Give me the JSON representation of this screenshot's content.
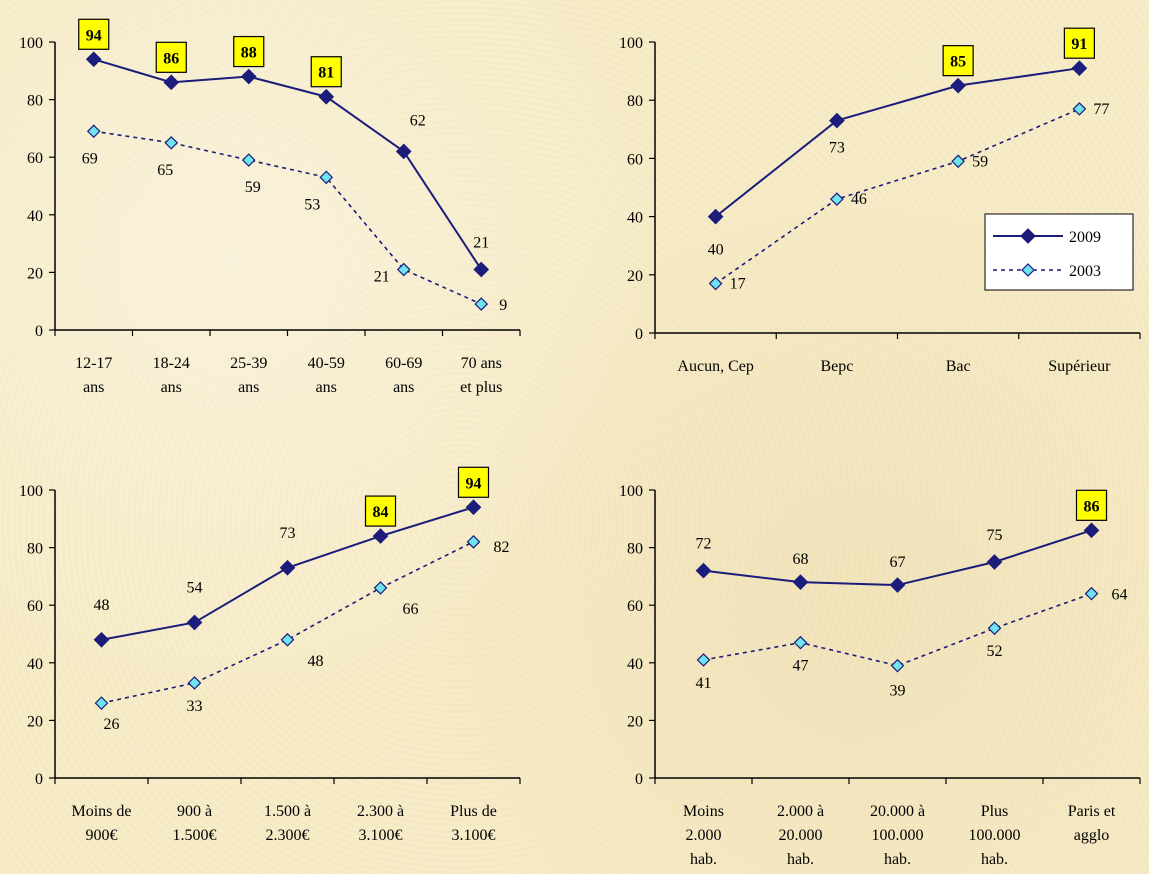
{
  "colors": {
    "series_2009": "#1c1c7a",
    "series_2003_line": "#1c1c7a",
    "series_2003_marker": "#6fe3f0",
    "highlight_fill": "#ffff00",
    "axis": "#000000"
  },
  "legend": {
    "entries": [
      "2009",
      "2003"
    ]
  },
  "chart_data": [
    {
      "type": "line",
      "categories": [
        [
          "12-17",
          "ans"
        ],
        [
          "18-24",
          "ans"
        ],
        [
          "25-39",
          "ans"
        ],
        [
          "40-59",
          "ans"
        ],
        [
          "60-69",
          "ans"
        ],
        [
          "70 ans",
          "et plus"
        ]
      ],
      "series": [
        {
          "name": "2009",
          "values": [
            94,
            86,
            88,
            81,
            62,
            21
          ],
          "labels": [
            "94",
            "86",
            "88",
            "81",
            "62",
            "21"
          ],
          "highlighted": [
            true,
            true,
            true,
            true,
            false,
            false
          ]
        },
        {
          "name": "2003",
          "values": [
            69,
            65,
            59,
            53,
            21,
            9
          ],
          "labels": [
            "69",
            "65",
            "59",
            "53",
            "21",
            "9"
          ],
          "highlighted": [
            false,
            false,
            false,
            false,
            false,
            false
          ]
        }
      ],
      "yticks": [
        "0",
        "20",
        "40",
        "60",
        "80",
        "100"
      ],
      "ylim": [
        0,
        100
      ],
      "legend": false
    },
    {
      "type": "line",
      "categories": [
        [
          "Aucun, Cep"
        ],
        [
          "Bepc"
        ],
        [
          "Bac"
        ],
        [
          "Supérieur"
        ]
      ],
      "series": [
        {
          "name": "2009",
          "values": [
            40,
            73,
            85,
            91
          ],
          "labels": [
            "40",
            "73",
            "85",
            "91"
          ],
          "highlighted": [
            false,
            false,
            true,
            true
          ]
        },
        {
          "name": "2003",
          "values": [
            17,
            46,
            59,
            77
          ],
          "labels": [
            "17",
            "46",
            "59",
            "77"
          ],
          "highlighted": [
            false,
            false,
            false,
            false
          ]
        }
      ],
      "yticks": [
        "0",
        "20",
        "40",
        "60",
        "80",
        "100"
      ],
      "ylim": [
        0,
        100
      ],
      "legend": "right"
    },
    {
      "type": "line",
      "categories": [
        [
          "Moins de",
          "900€"
        ],
        [
          "900 à",
          "1.500€"
        ],
        [
          "1.500 à",
          "2.300€"
        ],
        [
          "2.300 à",
          "3.100€"
        ],
        [
          "Plus de",
          "3.100€"
        ]
      ],
      "series": [
        {
          "name": "2009",
          "values": [
            48,
            54,
            73,
            84,
            94
          ],
          "labels": [
            "48",
            "54",
            "73",
            "84",
            "94"
          ],
          "highlighted": [
            false,
            false,
            false,
            true,
            true
          ]
        },
        {
          "name": "2003",
          "values": [
            26,
            33,
            48,
            66,
            82
          ],
          "labels": [
            "26",
            "33",
            "48",
            "66",
            "82"
          ],
          "highlighted": [
            false,
            false,
            false,
            false,
            false
          ]
        }
      ],
      "yticks": [
        "0",
        "20",
        "40",
        "60",
        "80",
        "100"
      ],
      "ylim": [
        0,
        100
      ],
      "legend": false
    },
    {
      "type": "line",
      "categories": [
        [
          "Moins",
          "2.000",
          "hab."
        ],
        [
          "2.000 à",
          "20.000",
          "hab."
        ],
        [
          "20.000 à",
          "100.000",
          "hab."
        ],
        [
          "Plus",
          "100.000",
          "hab."
        ],
        [
          "Paris et",
          "agglo"
        ]
      ],
      "series": [
        {
          "name": "2009",
          "values": [
            72,
            68,
            67,
            75,
            86
          ],
          "labels": [
            "72",
            "68",
            "67",
            "75",
            "86"
          ],
          "highlighted": [
            false,
            false,
            false,
            false,
            true
          ]
        },
        {
          "name": "2003",
          "values": [
            41,
            47,
            39,
            52,
            64
          ],
          "labels": [
            "41",
            "47",
            "39",
            "52",
            "64"
          ],
          "highlighted": [
            false,
            false,
            false,
            false,
            false
          ]
        }
      ],
      "yticks": [
        "0",
        "20",
        "40",
        "60",
        "80",
        "100"
      ],
      "ylim": [
        0,
        100
      ],
      "legend": false
    }
  ]
}
